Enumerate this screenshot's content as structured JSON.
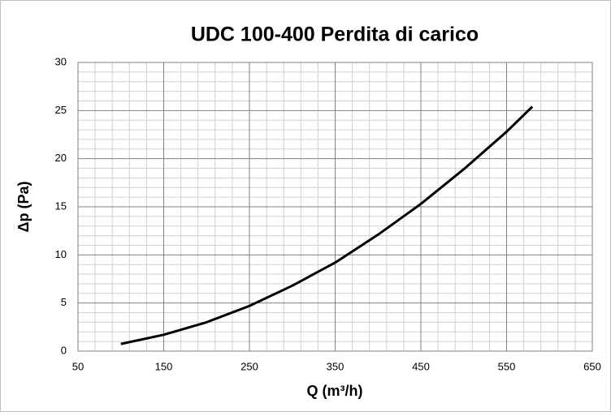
{
  "chart_data": {
    "type": "line",
    "title": "UDC 100-400 Perdita di carico",
    "x_label": "Q (m³/h)",
    "y_label": "Δp (Pa)",
    "x": [
      100,
      150,
      200,
      250,
      300,
      350,
      400,
      450,
      500,
      550,
      580
    ],
    "series": [
      {
        "name": "Δp",
        "color": "#000000",
        "values": [
          0.75,
          1.7,
          3.0,
          4.7,
          6.8,
          9.2,
          12.1,
          15.3,
          18.9,
          22.8,
          25.4
        ]
      }
    ],
    "xlim": [
      50,
      650
    ],
    "xticks": [
      50,
      150,
      250,
      350,
      450,
      550,
      650
    ],
    "ylim": [
      0,
      30
    ],
    "yticks": [
      0,
      5,
      10,
      15,
      20,
      25,
      30
    ],
    "grid": true
  }
}
